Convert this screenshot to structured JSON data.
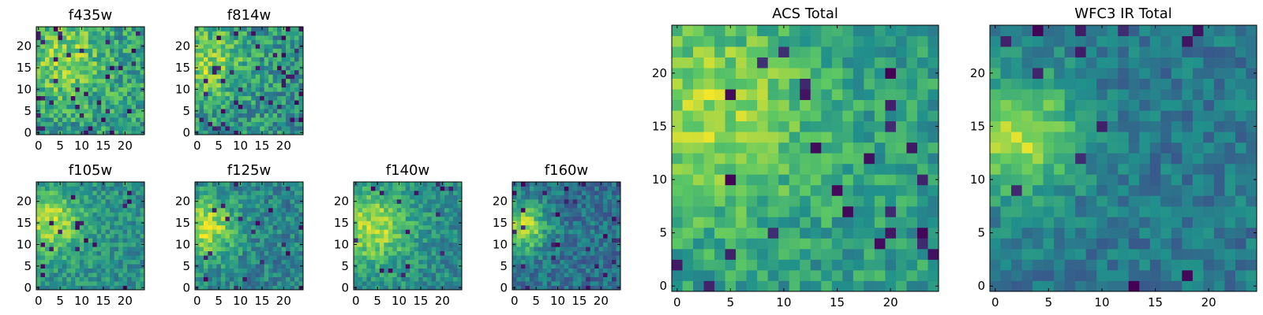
{
  "colormap": {
    "name": "viridis",
    "stops": [
      "#440154",
      "#3b528b",
      "#21918c",
      "#5ec962",
      "#fde725"
    ]
  },
  "chart_data": [
    {
      "type": "heatmap",
      "title": "f435w",
      "grid_size": 25,
      "xticks": [
        0,
        5,
        10,
        15,
        20
      ],
      "yticks": [
        0,
        5,
        10,
        15,
        20
      ],
      "seed": 11,
      "hotspot": {
        "x": 6,
        "y": 17,
        "amp": 0.25,
        "sigma": 7
      },
      "base": 0.55,
      "noise": 0.42,
      "darkness": 0.05
    },
    {
      "type": "heatmap",
      "title": "f814w",
      "grid_size": 25,
      "xticks": [
        0,
        5,
        10,
        15,
        20
      ],
      "yticks": [
        0,
        5,
        10,
        15,
        20
      ],
      "seed": 23,
      "hotspot": {
        "x": 3,
        "y": 16,
        "amp": 0.3,
        "sigma": 6
      },
      "base": 0.52,
      "noise": 0.42,
      "darkness": 0.06
    },
    {
      "type": "heatmap",
      "title": "f105w",
      "grid_size": 25,
      "xticks": [
        0,
        5,
        10,
        15,
        20
      ],
      "yticks": [
        0,
        5,
        10,
        15,
        20
      ],
      "seed": 37,
      "hotspot": {
        "x": 3,
        "y": 15,
        "amp": 0.4,
        "sigma": 5
      },
      "base": 0.5,
      "noise": 0.3,
      "darkness": 0.03
    },
    {
      "type": "heatmap",
      "title": "f125w",
      "grid_size": 25,
      "xticks": [
        0,
        5,
        10,
        15,
        20
      ],
      "yticks": [
        0,
        5,
        10,
        15,
        20
      ],
      "seed": 41,
      "hotspot": {
        "x": 2,
        "y": 14,
        "amp": 0.45,
        "sigma": 5
      },
      "base": 0.45,
      "noise": 0.32,
      "darkness": 0.04
    },
    {
      "type": "heatmap",
      "title": "f140w",
      "grid_size": 25,
      "xticks": [
        0,
        5,
        10,
        15,
        20
      ],
      "yticks": [
        0,
        5,
        10,
        15,
        20
      ],
      "seed": 53,
      "hotspot": {
        "x": 4,
        "y": 14,
        "amp": 0.4,
        "sigma": 6
      },
      "base": 0.48,
      "noise": 0.3,
      "darkness": 0.03
    },
    {
      "type": "heatmap",
      "title": "f160w",
      "grid_size": 25,
      "xticks": [
        0,
        5,
        10,
        15,
        20
      ],
      "yticks": [
        0,
        5,
        10,
        15,
        20
      ],
      "seed": 67,
      "hotspot": {
        "x": 2,
        "y": 14,
        "amp": 0.5,
        "sigma": 4
      },
      "base": 0.38,
      "noise": 0.3,
      "darkness": 0.04
    },
    {
      "type": "heatmap",
      "title": "ACS Total",
      "grid_size": 25,
      "xticks": [
        0,
        5,
        10,
        15,
        20
      ],
      "yticks": [
        0,
        5,
        10,
        15,
        20
      ],
      "seed": 79,
      "hotspot": {
        "x": 3,
        "y": 16,
        "amp": 0.3,
        "sigma": 7
      },
      "base": 0.55,
      "noise": 0.3,
      "darkness": 0.04
    },
    {
      "type": "heatmap",
      "title": "WFC3 IR Total",
      "grid_size": 25,
      "xticks": [
        0,
        5,
        10,
        15,
        20
      ],
      "yticks": [
        0,
        5,
        10,
        15,
        20
      ],
      "seed": 97,
      "hotspot": {
        "x": 2,
        "y": 14,
        "amp": 0.5,
        "sigma": 4
      },
      "base": 0.4,
      "noise": 0.25,
      "darkness": 0.03
    }
  ]
}
